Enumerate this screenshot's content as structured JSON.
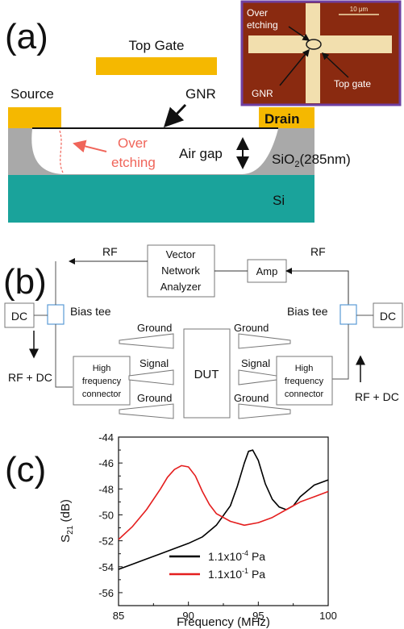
{
  "panel_a": {
    "label": "(a)",
    "top_gate": "Top Gate",
    "source": "Source",
    "drain": "Drain",
    "gnr": "GNR",
    "over_etching_line1": "Over",
    "over_etching_line2": "etching",
    "air_gap": "Air gap",
    "sio2_prefix": "SiO",
    "sio2_sub": "2",
    "sio2_suffix": "(285nm)",
    "si": "Si",
    "inset": {
      "over_line1": "Over",
      "over_line2": "etching",
      "scale": "10 μm",
      "gnr": "GNR",
      "top_gate": "Top gate"
    },
    "colors": {
      "gate": "#f5b800",
      "oxide": "#a9a9a9",
      "si": "#1aa39b",
      "etch": "#f0655a",
      "inset_border": "#6f3fa0"
    }
  },
  "panel_b": {
    "label": "(b)",
    "rf_left": "RF",
    "rf_right": "RF",
    "vna_line1": "Vector",
    "vna_line2": "Network",
    "vna_line3": "Analyzer",
    "amp": "Amp",
    "dc_left": "DC",
    "dc_right": "DC",
    "bias_tee_left": "Bias tee",
    "bias_tee_right": "Bias tee",
    "ground": "Ground",
    "signal": "Signal",
    "hf_line1": "High",
    "hf_line2": "frequency",
    "hf_line3": "connector",
    "dut": "DUT",
    "rf_dc_left": "RF + DC",
    "rf_dc_right": "RF + DC"
  },
  "panel_c": {
    "label": "(c)",
    "chart_data": {
      "type": "line",
      "xlabel": "Frequency (MHz)",
      "ylabel_main": "S",
      "ylabel_sub": "21",
      "ylabel_unit": " (dB)",
      "xlim": [
        85,
        100
      ],
      "ylim": [
        -57,
        -44
      ],
      "xticks": [
        85,
        90,
        95,
        100
      ],
      "yticks": [
        -44,
        -46,
        -48,
        -50,
        -52,
        -54,
        -56
      ],
      "series": [
        {
          "name": "1.1x10-4 Pa",
          "name_base": "1.1x10",
          "name_exp": "-4",
          "name_unit": " Pa",
          "color": "#000000",
          "x": [
            85,
            86,
            87,
            88,
            89,
            90,
            91,
            92,
            93,
            93.5,
            94,
            94.3,
            94.6,
            95,
            95.5,
            96,
            96.5,
            97,
            97.5,
            98,
            99,
            100
          ],
          "y": [
            -54.2,
            -53.8,
            -53.4,
            -53.0,
            -52.6,
            -52.2,
            -51.7,
            -50.8,
            -49.3,
            -47.8,
            -46.0,
            -45.1,
            -45.0,
            -45.8,
            -47.6,
            -48.8,
            -49.4,
            -49.6,
            -49.3,
            -48.6,
            -47.7,
            -47.3
          ]
        },
        {
          "name": "1.1x10-1 Pa",
          "name_base": "1.1x10",
          "name_exp": "-1",
          "name_unit": " Pa",
          "color": "#e41e1e",
          "x": [
            85,
            86,
            87,
            88,
            88.5,
            89,
            89.5,
            90,
            90.5,
            91,
            91.5,
            92,
            93,
            94,
            95,
            96,
            97,
            98,
            99,
            100
          ],
          "y": [
            -51.9,
            -50.9,
            -49.6,
            -48.0,
            -47.1,
            -46.5,
            -46.2,
            -46.3,
            -47.0,
            -48.2,
            -49.2,
            -49.9,
            -50.5,
            -50.8,
            -50.6,
            -50.2,
            -49.6,
            -49.0,
            -48.6,
            -48.2
          ]
        }
      ]
    }
  }
}
